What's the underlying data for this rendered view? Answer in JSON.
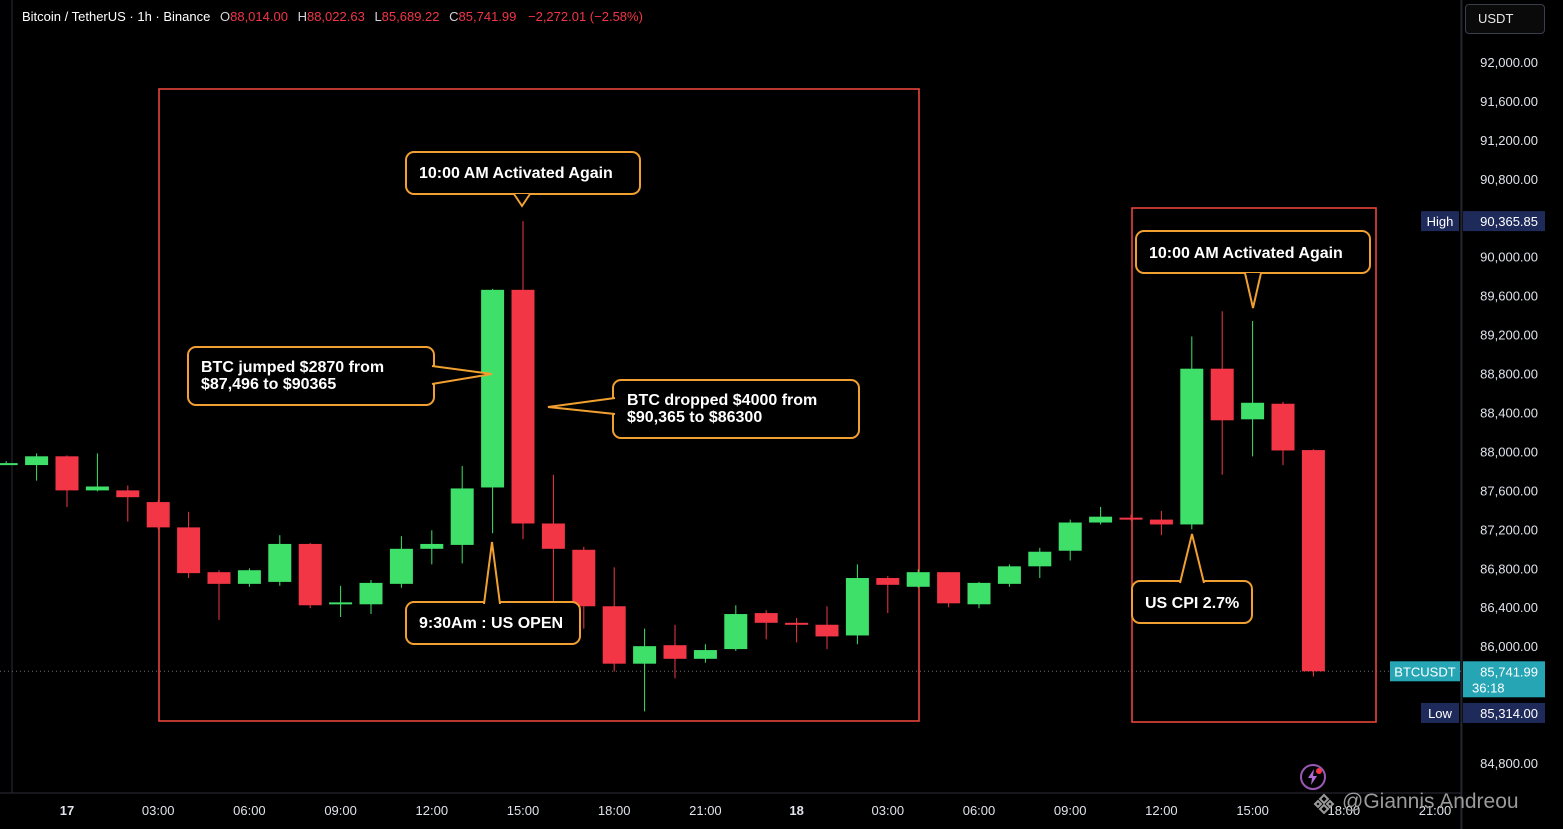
{
  "header": {
    "symbol": "Bitcoin / TetherUS · 1h · Binance",
    "open_label": "O",
    "open": "88,014.00",
    "high_label": "H",
    "high": "88,022.63",
    "low_label": "L",
    "low": "85,689.22",
    "close_label": "C",
    "close": "85,741.99",
    "change": "−2,272.01 (−2.58%)"
  },
  "currency_button": "USDT",
  "colors": {
    "up": "#3fe06a",
    "down": "#f23645",
    "box": "#e8453c",
    "callout": "#f0a030",
    "axis_tag": "#1e2a5a",
    "price_tag": "#26a6b5"
  },
  "price_axis_labels": [
    "92,000.00",
    "91,600.00",
    "91,200.00",
    "90,800.00",
    "90,000.00",
    "89,600.00",
    "89,200.00",
    "88,800.00",
    "88,400.00",
    "88,000.00",
    "87,600.00",
    "87,200.00",
    "86,800.00",
    "86,400.00",
    "86,000.00",
    "84,800.00"
  ],
  "time_axis_labels": [
    {
      "t": 0,
      "text": "17",
      "bold": true
    },
    {
      "t": 3,
      "text": "03:00"
    },
    {
      "t": 6,
      "text": "06:00"
    },
    {
      "t": 9,
      "text": "09:00"
    },
    {
      "t": 12,
      "text": "12:00"
    },
    {
      "t": 15,
      "text": "15:00"
    },
    {
      "t": 18,
      "text": "18:00"
    },
    {
      "t": 21,
      "text": "21:00"
    },
    {
      "t": 24,
      "text": "18",
      "bold": true
    },
    {
      "t": 27,
      "text": "03:00"
    },
    {
      "t": 30,
      "text": "06:00"
    },
    {
      "t": 33,
      "text": "09:00"
    },
    {
      "t": 36,
      "text": "12:00"
    },
    {
      "t": 39,
      "text": "15:00"
    },
    {
      "t": 42,
      "text": "18:00"
    },
    {
      "t": 45,
      "text": "21:00"
    }
  ],
  "tags": {
    "high_label": "High",
    "high_value": "90,365.85",
    "symbol_label": "BTCUSDT",
    "last_value": "85,741.99",
    "countdown": "36:18",
    "low_label": "Low",
    "low_value": "85,314.00"
  },
  "annotations": {
    "activated_1": "10:00 AM Activated Again",
    "activated_2": "10:00 AM Activated Again",
    "jumped_line1": "BTC jumped $2870 from",
    "jumped_line2": "$87,496 to $90365",
    "dropped_line1": "BTC dropped $4000 from",
    "dropped_line2": "$90,365 to $86300",
    "us_open": "9:30Am : US OPEN",
    "us_cpi": "US CPI 2.7%"
  },
  "watermark": "@Giannis Andreou",
  "chart_data": {
    "type": "candlestick",
    "title": "Bitcoin / TetherUS · 1h · Binance",
    "xlabel": "",
    "ylabel": "",
    "ylim": [
      84800,
      92000
    ],
    "timeframe": "1h",
    "candles": [
      {
        "t": -2,
        "o": 87880,
        "h": 87900,
        "l": 87860,
        "c": 87880
      },
      {
        "t": -1,
        "o": 87860,
        "h": 87980,
        "l": 87700,
        "c": 87950
      },
      {
        "t": 0,
        "o": 87950,
        "h": 87960,
        "l": 87430,
        "c": 87600
      },
      {
        "t": 1,
        "o": 87600,
        "h": 87980,
        "l": 87590,
        "c": 87640
      },
      {
        "t": 2,
        "o": 87600,
        "h": 87650,
        "l": 87280,
        "c": 87530
      },
      {
        "t": 3,
        "o": 87480,
        "h": 87500,
        "l": 87200,
        "c": 87220
      },
      {
        "t": 4,
        "o": 87220,
        "h": 87380,
        "l": 86700,
        "c": 86750
      },
      {
        "t": 5,
        "o": 86760,
        "h": 86780,
        "l": 86270,
        "c": 86640
      },
      {
        "t": 6,
        "o": 86640,
        "h": 86800,
        "l": 86610,
        "c": 86780
      },
      {
        "t": 7,
        "o": 86660,
        "h": 87140,
        "l": 86620,
        "c": 87050
      },
      {
        "t": 8,
        "o": 87050,
        "h": 87060,
        "l": 86390,
        "c": 86420
      },
      {
        "t": 9,
        "o": 86430,
        "h": 86620,
        "l": 86300,
        "c": 86450
      },
      {
        "t": 10,
        "o": 86430,
        "h": 86680,
        "l": 86330,
        "c": 86650
      },
      {
        "t": 11,
        "o": 86640,
        "h": 87130,
        "l": 86600,
        "c": 87000
      },
      {
        "t": 12,
        "o": 87000,
        "h": 87190,
        "l": 86840,
        "c": 87050
      },
      {
        "t": 13,
        "o": 87040,
        "h": 87850,
        "l": 86850,
        "c": 87620
      },
      {
        "t": 14,
        "o": 87630,
        "h": 89670,
        "l": 87160,
        "c": 89660
      },
      {
        "t": 15,
        "o": 89660,
        "h": 90365,
        "l": 87100,
        "c": 87260
      },
      {
        "t": 16,
        "o": 87260,
        "h": 87760,
        "l": 86230,
        "c": 87000
      },
      {
        "t": 17,
        "o": 86990,
        "h": 87020,
        "l": 86180,
        "c": 86410
      },
      {
        "t": 18,
        "o": 86410,
        "h": 86810,
        "l": 85740,
        "c": 85820
      },
      {
        "t": 19,
        "o": 85820,
        "h": 86180,
        "l": 85330,
        "c": 86000
      },
      {
        "t": 20,
        "o": 86010,
        "h": 86220,
        "l": 85670,
        "c": 85870
      },
      {
        "t": 21,
        "o": 85870,
        "h": 86020,
        "l": 85830,
        "c": 85960
      },
      {
        "t": 22,
        "o": 85970,
        "h": 86420,
        "l": 85950,
        "c": 86330
      },
      {
        "t": 23,
        "o": 86340,
        "h": 86370,
        "l": 86070,
        "c": 86240
      },
      {
        "t": 24,
        "o": 86240,
        "h": 86290,
        "l": 86040,
        "c": 86220
      },
      {
        "t": 25,
        "o": 86220,
        "h": 86410,
        "l": 85970,
        "c": 86100
      },
      {
        "t": 26,
        "o": 86110,
        "h": 86840,
        "l": 86020,
        "c": 86700
      },
      {
        "t": 27,
        "o": 86700,
        "h": 86720,
        "l": 86340,
        "c": 86630
      },
      {
        "t": 28,
        "o": 86610,
        "h": 86790,
        "l": 86600,
        "c": 86760
      },
      {
        "t": 29,
        "o": 86760,
        "h": 86760,
        "l": 86400,
        "c": 86440
      },
      {
        "t": 30,
        "o": 86430,
        "h": 86660,
        "l": 86390,
        "c": 86650
      },
      {
        "t": 31,
        "o": 86640,
        "h": 86840,
        "l": 86610,
        "c": 86820
      },
      {
        "t": 32,
        "o": 86820,
        "h": 87010,
        "l": 86700,
        "c": 86970
      },
      {
        "t": 33,
        "o": 86980,
        "h": 87300,
        "l": 86880,
        "c": 87270
      },
      {
        "t": 34,
        "o": 87270,
        "h": 87430,
        "l": 87250,
        "c": 87330
      },
      {
        "t": 35,
        "o": 87320,
        "h": 87350,
        "l": 87290,
        "c": 87310
      },
      {
        "t": 36,
        "o": 87300,
        "h": 87390,
        "l": 87140,
        "c": 87250
      },
      {
        "t": 37,
        "o": 87250,
        "h": 89180,
        "l": 87200,
        "c": 88850
      },
      {
        "t": 38,
        "o": 88850,
        "h": 89440,
        "l": 87760,
        "c": 88320
      },
      {
        "t": 39,
        "o": 88330,
        "h": 89340,
        "l": 87950,
        "c": 88500
      },
      {
        "t": 40,
        "o": 88490,
        "h": 88510,
        "l": 87860,
        "c": 88010
      },
      {
        "t": 41,
        "o": 88014,
        "h": 88023,
        "l": 85689,
        "c": 85742
      }
    ]
  }
}
